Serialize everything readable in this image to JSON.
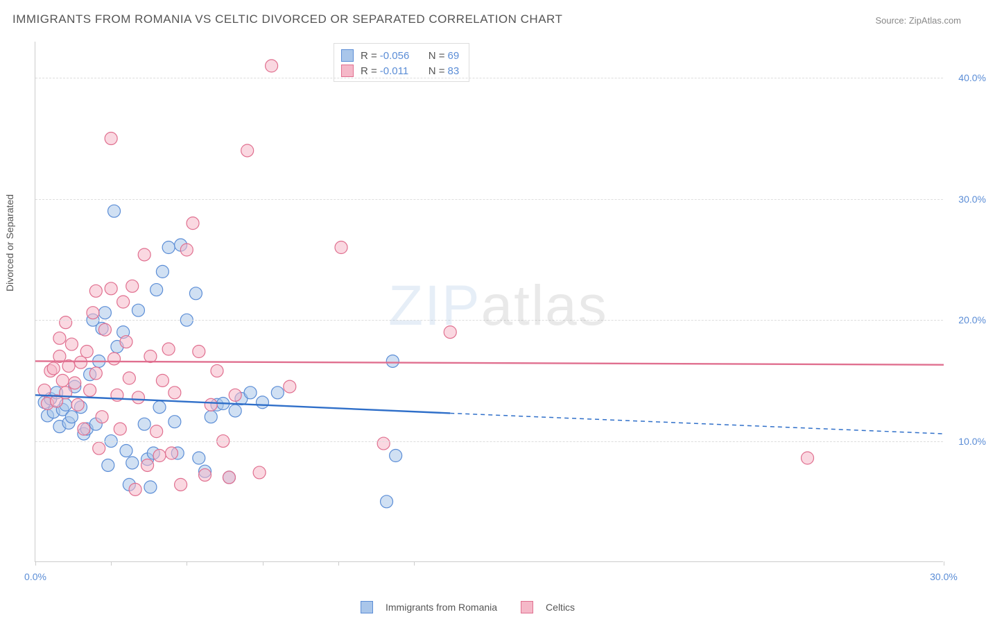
{
  "title": "IMMIGRANTS FROM ROMANIA VS CELTIC DIVORCED OR SEPARATED CORRELATION CHART",
  "source_label": "Source: ZipAtlas.com",
  "y_axis_label": "Divorced or Separated",
  "watermark": {
    "part1": "ZIP",
    "part2": "atlas"
  },
  "chart": {
    "type": "scatter",
    "background_color": "#ffffff",
    "grid_color": "#dddddd",
    "axis_color": "#cccccc",
    "label_color": "#555555",
    "tick_label_color": "#5b8dd6",
    "tick_fontsize": 14,
    "title_fontsize": 17,
    "xlim": [
      0,
      30
    ],
    "ylim": [
      0,
      43
    ],
    "x_ticks": [
      0,
      2.5,
      5,
      7.5,
      10,
      12.5,
      30
    ],
    "x_tick_labels": {
      "0": "0.0%",
      "30": "30.0%"
    },
    "y_ticks": [
      10,
      20,
      30,
      40
    ],
    "y_tick_labels": {
      "10": "10.0%",
      "20": "20.0%",
      "30": "30.0%",
      "40": "40.0%"
    },
    "point_radius": 9,
    "point_opacity": 0.55,
    "line_width": 2.4
  },
  "series": [
    {
      "key": "romania",
      "label": "Immigrants from Romania",
      "fill_color": "#a9c6ea",
      "stroke_color": "#5b8dd6",
      "line_color": "#2f6fc9",
      "stats": {
        "R": "-0.056",
        "N": "69"
      },
      "trend": {
        "x1": 0,
        "y1": 13.8,
        "x2": 13.7,
        "y2": 12.3,
        "dash_to_x": 30,
        "dash_to_y": 10.6
      },
      "points": [
        [
          0.3,
          13.2
        ],
        [
          0.4,
          12.1
        ],
        [
          0.5,
          13.5
        ],
        [
          0.6,
          12.4
        ],
        [
          0.7,
          14.0
        ],
        [
          0.8,
          11.2
        ],
        [
          0.9,
          12.6
        ],
        [
          1.0,
          13.0
        ],
        [
          1.1,
          11.5
        ],
        [
          1.2,
          12.0
        ],
        [
          1.3,
          14.5
        ],
        [
          1.5,
          12.8
        ],
        [
          1.6,
          10.6
        ],
        [
          1.7,
          11.0
        ],
        [
          1.8,
          15.5
        ],
        [
          1.9,
          20.0
        ],
        [
          2.0,
          11.4
        ],
        [
          2.1,
          16.6
        ],
        [
          2.2,
          19.3
        ],
        [
          2.3,
          20.6
        ],
        [
          2.4,
          8.0
        ],
        [
          2.5,
          10.0
        ],
        [
          2.6,
          29.0
        ],
        [
          2.7,
          17.8
        ],
        [
          2.9,
          19.0
        ],
        [
          3.0,
          9.2
        ],
        [
          3.1,
          6.4
        ],
        [
          3.2,
          8.2
        ],
        [
          3.4,
          20.8
        ],
        [
          3.6,
          11.4
        ],
        [
          3.7,
          8.5
        ],
        [
          3.8,
          6.2
        ],
        [
          3.9,
          9.0
        ],
        [
          4.0,
          22.5
        ],
        [
          4.1,
          12.8
        ],
        [
          4.2,
          24.0
        ],
        [
          4.4,
          26.0
        ],
        [
          4.6,
          11.6
        ],
        [
          4.7,
          9.0
        ],
        [
          4.8,
          26.2
        ],
        [
          5.0,
          20.0
        ],
        [
          5.3,
          22.2
        ],
        [
          5.4,
          8.6
        ],
        [
          5.6,
          7.5
        ],
        [
          5.8,
          12.0
        ],
        [
          6.0,
          13.0
        ],
        [
          6.2,
          13.1
        ],
        [
          6.4,
          7.0
        ],
        [
          6.6,
          12.5
        ],
        [
          6.8,
          13.5
        ],
        [
          7.1,
          14.0
        ],
        [
          7.5,
          13.2
        ],
        [
          8.0,
          14.0
        ],
        [
          11.8,
          16.6
        ],
        [
          11.6,
          5.0
        ],
        [
          11.9,
          8.8
        ]
      ]
    },
    {
      "key": "celtics",
      "label": "Celtics",
      "fill_color": "#f5b8c8",
      "stroke_color": "#e06f8f",
      "line_color": "#e06f8f",
      "stats": {
        "R": "-0.011",
        "N": "83"
      },
      "trend": {
        "x1": 0,
        "y1": 16.6,
        "x2": 30,
        "y2": 16.3
      },
      "points": [
        [
          0.3,
          14.2
        ],
        [
          0.4,
          13.1
        ],
        [
          0.5,
          15.8
        ],
        [
          0.6,
          16.0
        ],
        [
          0.7,
          13.3
        ],
        [
          0.8,
          17.0
        ],
        [
          0.8,
          18.5
        ],
        [
          0.9,
          15.0
        ],
        [
          1.0,
          14.0
        ],
        [
          1.0,
          19.8
        ],
        [
          1.1,
          16.2
        ],
        [
          1.2,
          18.0
        ],
        [
          1.3,
          14.8
        ],
        [
          1.4,
          13.0
        ],
        [
          1.5,
          16.5
        ],
        [
          1.6,
          11.0
        ],
        [
          1.7,
          17.4
        ],
        [
          1.8,
          14.2
        ],
        [
          1.9,
          20.6
        ],
        [
          2.0,
          15.6
        ],
        [
          2.0,
          22.4
        ],
        [
          2.1,
          9.4
        ],
        [
          2.2,
          12.0
        ],
        [
          2.3,
          19.2
        ],
        [
          2.5,
          22.6
        ],
        [
          2.5,
          35.0
        ],
        [
          2.6,
          16.8
        ],
        [
          2.7,
          13.8
        ],
        [
          2.8,
          11.0
        ],
        [
          2.9,
          21.5
        ],
        [
          3.0,
          18.2
        ],
        [
          3.1,
          15.2
        ],
        [
          3.2,
          22.8
        ],
        [
          3.3,
          6.0
        ],
        [
          3.4,
          13.6
        ],
        [
          3.6,
          25.4
        ],
        [
          3.7,
          8.0
        ],
        [
          3.8,
          17.0
        ],
        [
          4.0,
          10.8
        ],
        [
          4.1,
          8.8
        ],
        [
          4.2,
          15.0
        ],
        [
          4.4,
          17.6
        ],
        [
          4.5,
          9.0
        ],
        [
          4.6,
          14.0
        ],
        [
          4.8,
          6.4
        ],
        [
          5.0,
          25.8
        ],
        [
          5.2,
          28.0
        ],
        [
          5.4,
          17.4
        ],
        [
          5.6,
          7.2
        ],
        [
          5.8,
          13.0
        ],
        [
          6.0,
          15.8
        ],
        [
          6.2,
          10.0
        ],
        [
          6.4,
          7.0
        ],
        [
          6.6,
          13.8
        ],
        [
          7.0,
          34.0
        ],
        [
          7.4,
          7.4
        ],
        [
          7.8,
          41.0
        ],
        [
          8.4,
          14.5
        ],
        [
          10.1,
          26.0
        ],
        [
          11.5,
          9.8
        ],
        [
          13.7,
          19.0
        ],
        [
          25.5,
          8.6
        ]
      ]
    }
  ],
  "legend_top": {
    "r_label": "R =",
    "n_label": "N ="
  }
}
